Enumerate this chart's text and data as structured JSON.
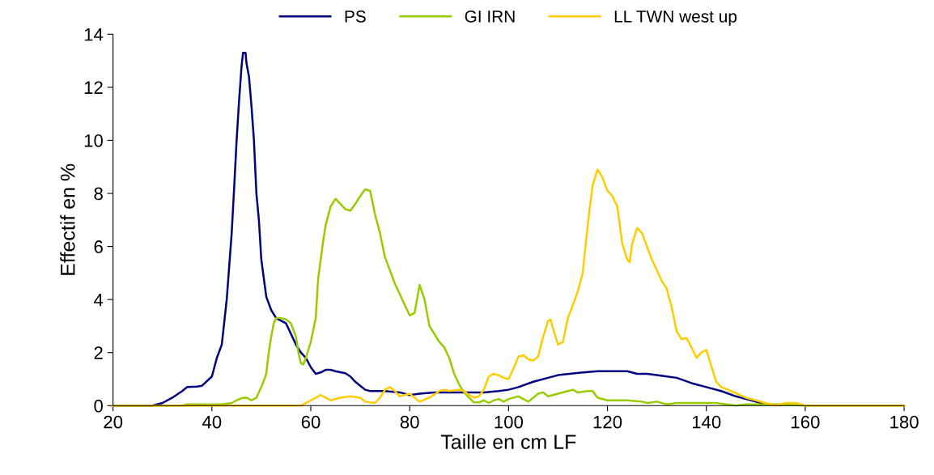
{
  "chart_data": {
    "type": "line",
    "xlabel": "Taille en cm LF",
    "ylabel": "Effectif en %",
    "xlim": [
      20,
      180
    ],
    "xticks": [
      20,
      40,
      60,
      80,
      100,
      120,
      140,
      160,
      180
    ],
    "ylim": [
      0,
      14
    ],
    "yticks": [
      0,
      2,
      4,
      6,
      8,
      10,
      12,
      14
    ],
    "grid": false,
    "legend": "top",
    "marker": "none",
    "line_style": "solid",
    "series": [
      {
        "name": "PS",
        "color": "#000080",
        "x": [
          20,
          28,
          30,
          32,
          34,
          35,
          37,
          38,
          40,
          41,
          42,
          43,
          44,
          44.5,
          45,
          45.5,
          46,
          46.3,
          46.8,
          47,
          47.5,
          48,
          48.5,
          49,
          49.5,
          50,
          51,
          52,
          53,
          54,
          55,
          56,
          57,
          58,
          59,
          60,
          61,
          62,
          63,
          64,
          65,
          67,
          68,
          69,
          70,
          71,
          72,
          75,
          78,
          80,
          82,
          85,
          88,
          95,
          98,
          100,
          102,
          105,
          108,
          110,
          115,
          118,
          124,
          126,
          128,
          130,
          132,
          134,
          137,
          140,
          143,
          146,
          150,
          152,
          155
        ],
        "values": [
          0,
          0,
          0.1,
          0.3,
          0.55,
          0.7,
          0.72,
          0.75,
          1.1,
          1.8,
          2.3,
          4.0,
          6.5,
          8.2,
          10.0,
          11.5,
          12.8,
          13.3,
          13.3,
          12.9,
          12.4,
          11.3,
          10.0,
          8.0,
          7.0,
          5.5,
          4.1,
          3.6,
          3.3,
          3.2,
          3.1,
          2.7,
          2.3,
          2.0,
          1.8,
          1.45,
          1.2,
          1.25,
          1.35,
          1.35,
          1.3,
          1.22,
          1.1,
          0.9,
          0.75,
          0.6,
          0.55,
          0.55,
          0.5,
          0.4,
          0.45,
          0.5,
          0.5,
          0.5,
          0.55,
          0.6,
          0.7,
          0.9,
          1.05,
          1.15,
          1.25,
          1.3,
          1.3,
          1.2,
          1.2,
          1.15,
          1.1,
          1.05,
          0.85,
          0.7,
          0.55,
          0.35,
          0.15,
          0.05,
          0.02
        ]
      },
      {
        "name": "GI IRN",
        "color": "#99cc00",
        "x": [
          20,
          34,
          35,
          42,
          44,
          45,
          46,
          47,
          48,
          49,
          50,
          51,
          51.5,
          52,
          52.5,
          53,
          54,
          55,
          56,
          57,
          57.5,
          58,
          58.5,
          59,
          60,
          61,
          61.5,
          62,
          62.5,
          63,
          64,
          65,
          66,
          67,
          68,
          69,
          70,
          71,
          72,
          73,
          74,
          75,
          76,
          77,
          78,
          79,
          80,
          81,
          82,
          83,
          84,
          85,
          86,
          87,
          88,
          89,
          90,
          91,
          92,
          93,
          94,
          95,
          96,
          97,
          98,
          99,
          100,
          102,
          104,
          106,
          107,
          108,
          110,
          112,
          113,
          114,
          116,
          117,
          118,
          120,
          124,
          127,
          128,
          130,
          132,
          134,
          136,
          142,
          144,
          146,
          148,
          152,
          155,
          160,
          180
        ],
        "values": [
          0,
          0,
          0.05,
          0.05,
          0.1,
          0.2,
          0.28,
          0.3,
          0.2,
          0.3,
          0.7,
          1.2,
          2.0,
          2.6,
          3.1,
          3.3,
          3.3,
          3.25,
          3.1,
          2.6,
          2.0,
          1.6,
          1.55,
          1.8,
          2.4,
          3.3,
          4.8,
          5.5,
          6.2,
          6.8,
          7.5,
          7.8,
          7.6,
          7.4,
          7.35,
          7.6,
          7.9,
          8.15,
          8.1,
          7.2,
          6.5,
          5.6,
          5.1,
          4.6,
          4.2,
          3.8,
          3.4,
          3.5,
          4.55,
          4.0,
          3.0,
          2.7,
          2.4,
          2.2,
          1.8,
          1.2,
          0.8,
          0.5,
          0.3,
          0.12,
          0.12,
          0.2,
          0.1,
          0.2,
          0.25,
          0.15,
          0.25,
          0.35,
          0.15,
          0.45,
          0.5,
          0.35,
          0.45,
          0.55,
          0.6,
          0.5,
          0.55,
          0.55,
          0.3,
          0.2,
          0.2,
          0.15,
          0.1,
          0.15,
          0.05,
          0.1,
          0.1,
          0.1,
          0.05,
          0,
          0.05,
          0.05,
          0.05,
          0,
          0
        ]
      },
      {
        "name": "LL TWN west up",
        "color": "#ffcc00",
        "x": [
          20,
          58,
          60,
          62,
          63,
          64,
          66,
          68,
          70,
          71,
          73,
          74,
          75,
          76,
          77,
          78,
          80,
          81,
          82,
          84,
          86,
          87,
          88,
          90,
          91,
          92,
          93,
          94,
          95,
          96,
          97,
          98,
          99,
          100,
          101,
          102,
          103,
          104,
          105,
          106,
          107,
          108,
          108.5,
          109,
          110,
          111,
          112,
          113,
          114,
          115,
          116,
          117,
          118,
          119,
          120,
          121,
          122,
          123,
          124,
          124.5,
          125,
          126,
          127,
          128,
          129,
          130,
          131,
          132,
          133,
          134,
          135,
          136,
          137,
          138,
          139,
          140,
          141,
          142,
          143,
          145,
          148,
          152,
          154,
          156,
          158,
          160,
          180
        ],
        "values": [
          0,
          0,
          0.2,
          0.4,
          0.3,
          0.2,
          0.3,
          0.35,
          0.3,
          0.15,
          0.1,
          0.3,
          0.6,
          0.7,
          0.55,
          0.35,
          0.45,
          0.3,
          0.15,
          0.3,
          0.55,
          0.6,
          0.55,
          0.6,
          0.55,
          0.4,
          0.3,
          0.35,
          0.6,
          1.1,
          1.2,
          1.15,
          1.05,
          1.0,
          1.4,
          1.85,
          1.9,
          1.75,
          1.7,
          1.85,
          2.6,
          3.2,
          3.25,
          2.9,
          2.3,
          2.4,
          3.3,
          3.8,
          4.3,
          5.0,
          6.8,
          8.3,
          8.9,
          8.6,
          8.1,
          7.9,
          7.5,
          6.1,
          5.5,
          5.4,
          6.1,
          6.7,
          6.5,
          6.0,
          5.5,
          5.1,
          4.7,
          4.4,
          3.7,
          2.8,
          2.5,
          2.55,
          2.2,
          1.8,
          2.0,
          2.1,
          1.5,
          0.9,
          0.7,
          0.55,
          0.3,
          0.1,
          0.0,
          0.1,
          0.1,
          0,
          0
        ]
      }
    ]
  }
}
